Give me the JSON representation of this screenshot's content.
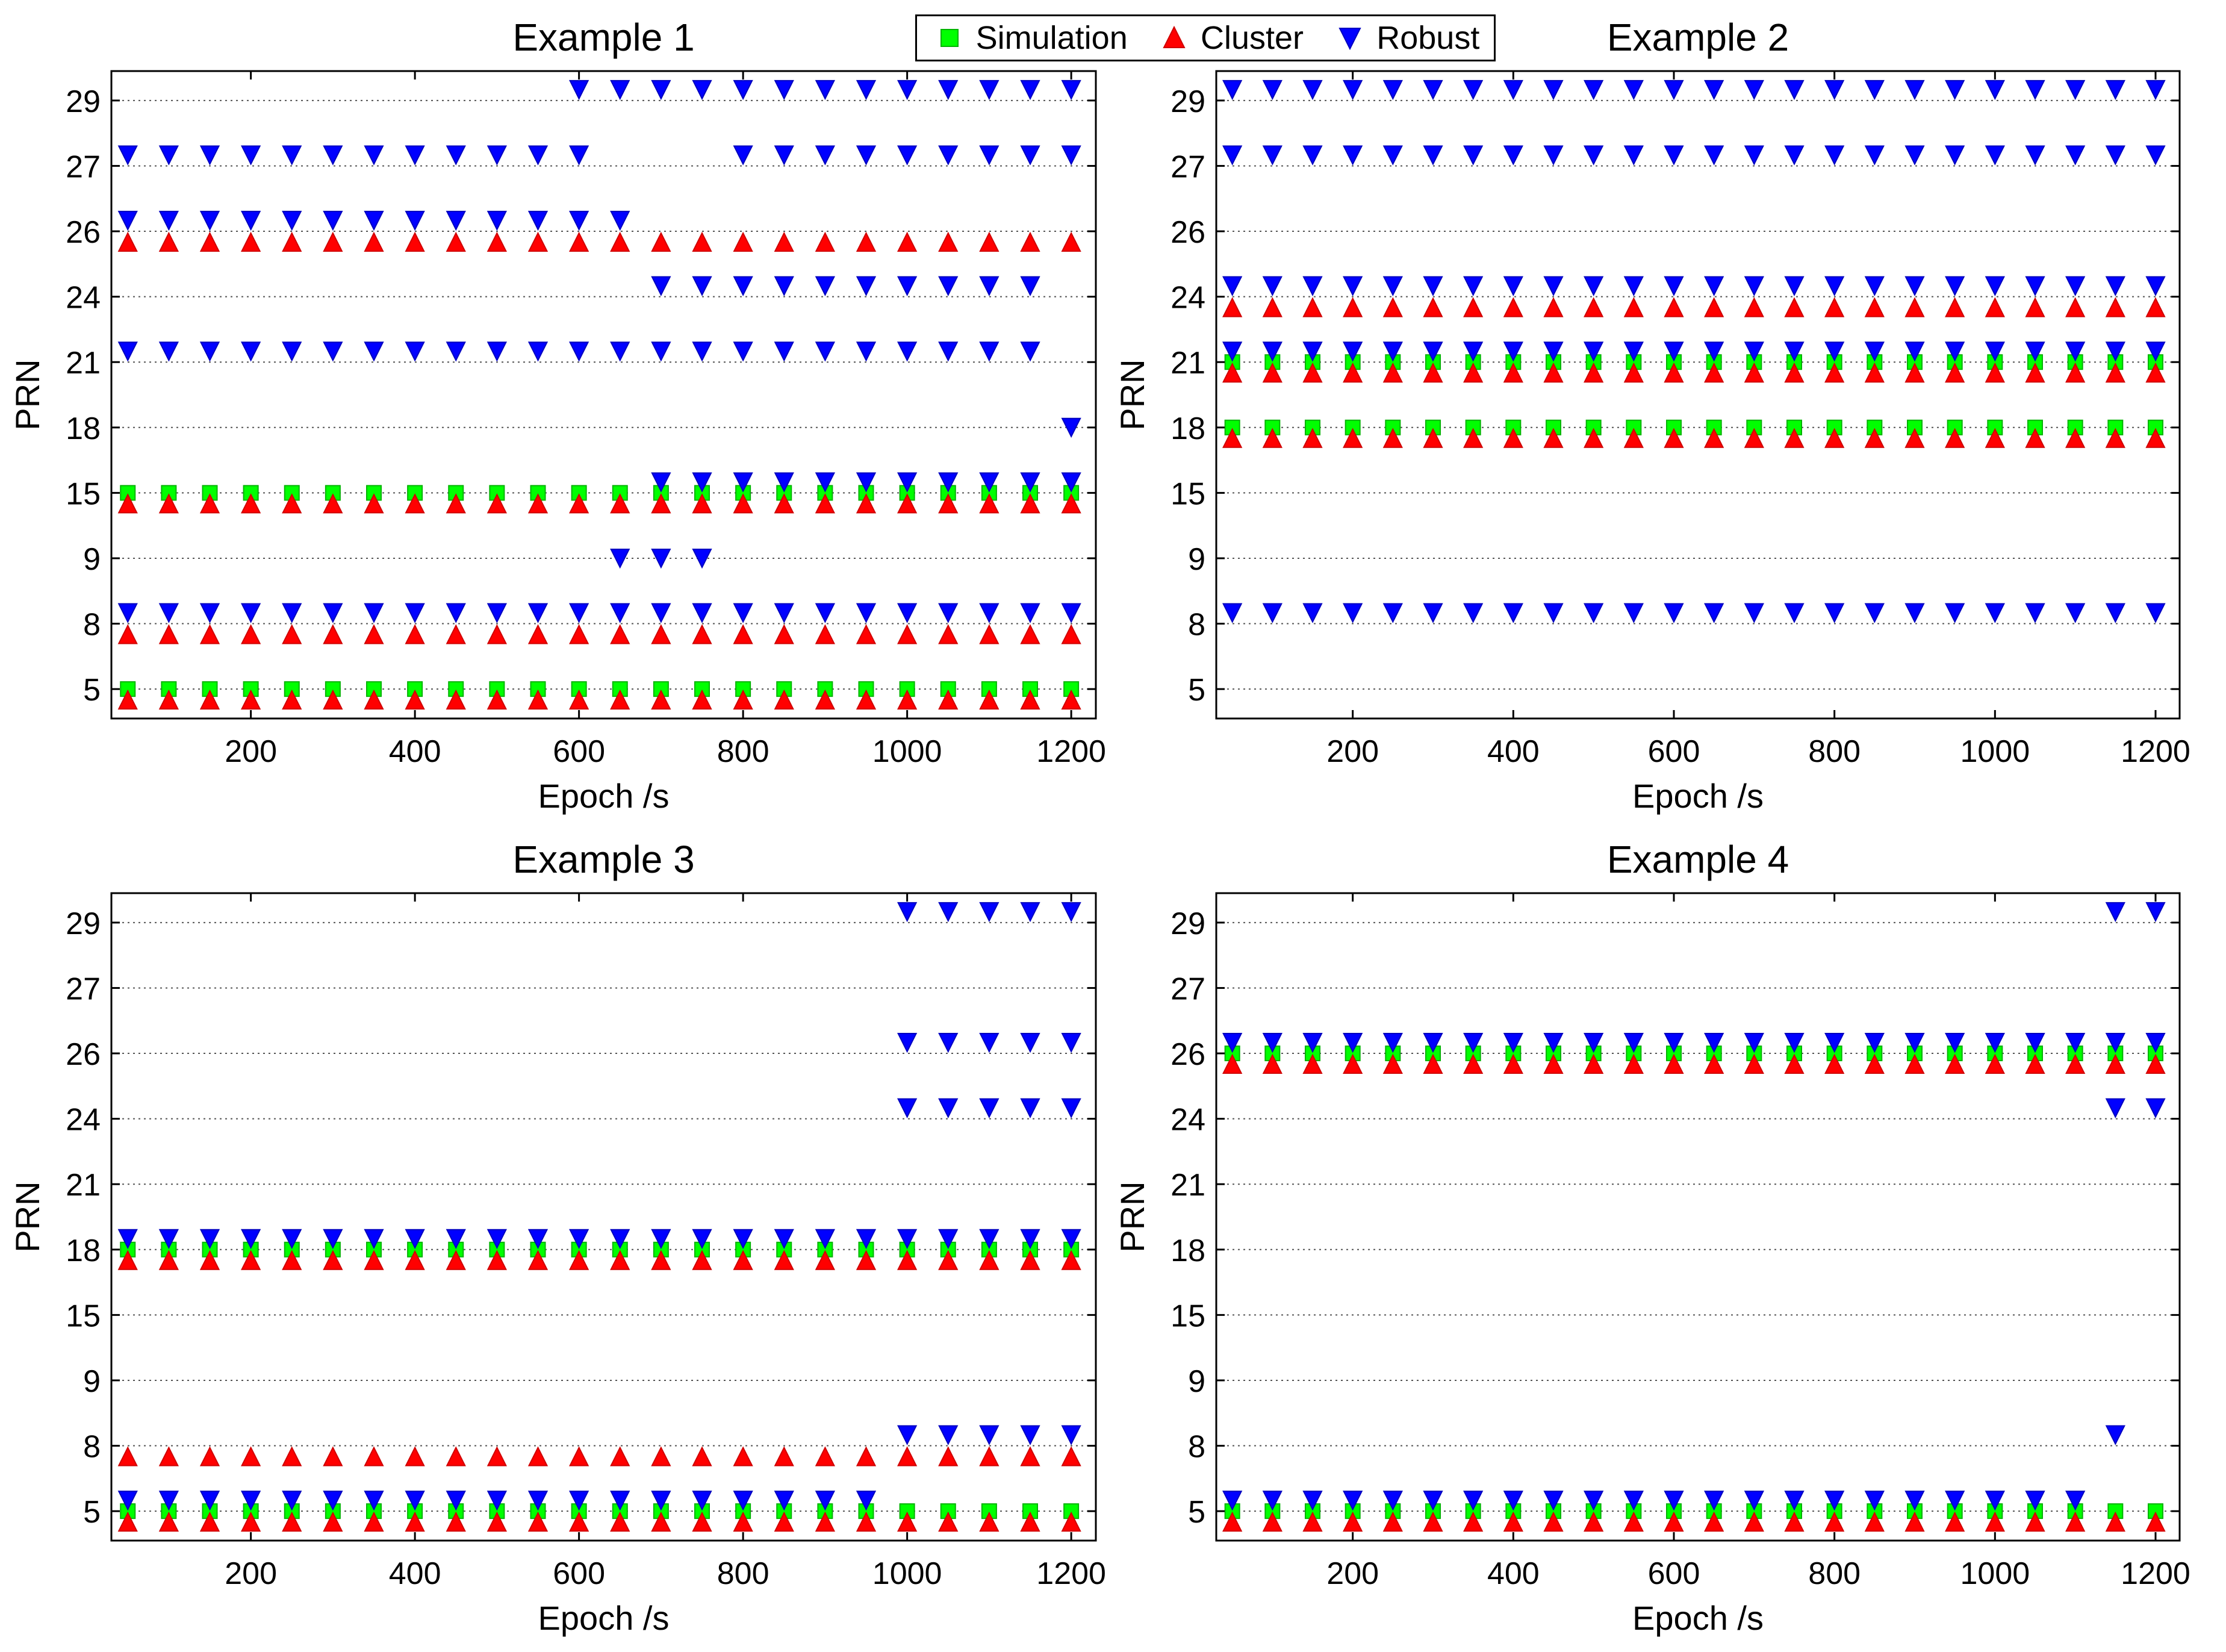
{
  "legend": {
    "entries": [
      {
        "label": "Simulation",
        "marker": "square",
        "color": "#00ff00",
        "edge": "#00b400"
      },
      {
        "label": "Cluster",
        "marker": "triangle-up",
        "color": "#ff0000",
        "edge": "#d00000"
      },
      {
        "label": "Robust",
        "marker": "triangle-down",
        "color": "#0000ff",
        "edge": "#0000c0"
      }
    ]
  },
  "chart_data": [
    {
      "type": "scatter",
      "title": "Example 1",
      "xlabel": "Epoch /s",
      "ylabel": "PRN",
      "xlim": [
        30,
        1230
      ],
      "x_ticks": [
        "200",
        "400",
        "600",
        "800",
        "1000",
        "1200"
      ],
      "y_categories": [
        "5",
        "8",
        "9",
        "15",
        "18",
        "21",
        "24",
        "26",
        "27",
        "29"
      ],
      "grid": "horizontal dotted",
      "series": [
        {
          "name": "Simulation",
          "points": [
            {
              "prn": "5",
              "from": 50,
              "to": 1200,
              "step": 50
            },
            {
              "prn": "15",
              "from": 50,
              "to": 1200,
              "step": 50
            }
          ]
        },
        {
          "name": "Cluster",
          "points": [
            {
              "prn": "5",
              "from": 50,
              "to": 1200,
              "step": 50
            },
            {
              "prn": "8",
              "from": 50,
              "to": 1200,
              "step": 50
            },
            {
              "prn": "15",
              "from": 50,
              "to": 1200,
              "step": 50
            },
            {
              "prn": "26",
              "from": 50,
              "to": 1200,
              "step": 50
            }
          ]
        },
        {
          "name": "Robust",
          "points": [
            {
              "prn": "8",
              "from": 50,
              "to": 1200,
              "step": 50
            },
            {
              "prn": "9",
              "from": 650,
              "to": 750,
              "step": 50
            },
            {
              "prn": "15",
              "from": 700,
              "to": 1200,
              "step": 50
            },
            {
              "prn": "18",
              "from": 1200,
              "to": 1200,
              "step": 50
            },
            {
              "prn": "21",
              "from": 50,
              "to": 1150,
              "step": 50
            },
            {
              "prn": "24",
              "from": 700,
              "to": 1150,
              "step": 50
            },
            {
              "prn": "26",
              "from": 50,
              "to": 650,
              "step": 50
            },
            {
              "prn": "27",
              "from": 50,
              "to": 600,
              "step": 50
            },
            {
              "prn": "27",
              "from": 800,
              "to": 1200,
              "step": 50
            },
            {
              "prn": "29",
              "from": 600,
              "to": 1200,
              "step": 50
            }
          ]
        }
      ]
    },
    {
      "type": "scatter",
      "title": "Example 2",
      "xlabel": "Epoch /s",
      "ylabel": "PRN",
      "xlim": [
        30,
        1230
      ],
      "x_ticks": [
        "200",
        "400",
        "600",
        "800",
        "1000",
        "1200"
      ],
      "y_categories": [
        "5",
        "8",
        "9",
        "15",
        "18",
        "21",
        "24",
        "26",
        "27",
        "29"
      ],
      "grid": "horizontal dotted",
      "series": [
        {
          "name": "Simulation",
          "points": [
            {
              "prn": "18",
              "from": 50,
              "to": 1200,
              "step": 50
            },
            {
              "prn": "21",
              "from": 50,
              "to": 1200,
              "step": 50
            }
          ]
        },
        {
          "name": "Cluster",
          "points": [
            {
              "prn": "18",
              "from": 50,
              "to": 1200,
              "step": 50
            },
            {
              "prn": "21",
              "from": 50,
              "to": 1200,
              "step": 50
            },
            {
              "prn": "24",
              "from": 50,
              "to": 1200,
              "step": 50
            }
          ]
        },
        {
          "name": "Robust",
          "points": [
            {
              "prn": "8",
              "from": 50,
              "to": 1200,
              "step": 50
            },
            {
              "prn": "21",
              "from": 50,
              "to": 1200,
              "step": 50
            },
            {
              "prn": "24",
              "from": 50,
              "to": 1200,
              "step": 50
            },
            {
              "prn": "27",
              "from": 50,
              "to": 1200,
              "step": 50
            },
            {
              "prn": "29",
              "from": 50,
              "to": 1200,
              "step": 50
            }
          ]
        }
      ]
    },
    {
      "type": "scatter",
      "title": "Example 3",
      "xlabel": "Epoch /s",
      "ylabel": "PRN",
      "xlim": [
        30,
        1230
      ],
      "x_ticks": [
        "200",
        "400",
        "600",
        "800",
        "1000",
        "1200"
      ],
      "y_categories": [
        "5",
        "8",
        "9",
        "15",
        "18",
        "21",
        "24",
        "26",
        "27",
        "29"
      ],
      "grid": "horizontal dotted",
      "series": [
        {
          "name": "Simulation",
          "points": [
            {
              "prn": "5",
              "from": 50,
              "to": 1200,
              "step": 50
            },
            {
              "prn": "18",
              "from": 50,
              "to": 1200,
              "step": 50
            }
          ]
        },
        {
          "name": "Cluster",
          "points": [
            {
              "prn": "5",
              "from": 50,
              "to": 1200,
              "step": 50
            },
            {
              "prn": "8",
              "from": 50,
              "to": 1200,
              "step": 50
            },
            {
              "prn": "18",
              "from": 50,
              "to": 1200,
              "step": 50
            }
          ]
        },
        {
          "name": "Robust",
          "points": [
            {
              "prn": "5",
              "from": 50,
              "to": 950,
              "step": 50
            },
            {
              "prn": "8",
              "from": 1000,
              "to": 1200,
              "step": 50
            },
            {
              "prn": "18",
              "from": 50,
              "to": 1200,
              "step": 50
            },
            {
              "prn": "24",
              "from": 1000,
              "to": 1200,
              "step": 50
            },
            {
              "prn": "26",
              "from": 1000,
              "to": 1200,
              "step": 50
            },
            {
              "prn": "29",
              "from": 1000,
              "to": 1200,
              "step": 50
            }
          ]
        }
      ]
    },
    {
      "type": "scatter",
      "title": "Example 4",
      "xlabel": "Epoch /s",
      "ylabel": "PRN",
      "xlim": [
        30,
        1230
      ],
      "x_ticks": [
        "200",
        "400",
        "600",
        "800",
        "1000",
        "1200"
      ],
      "y_categories": [
        "5",
        "8",
        "9",
        "15",
        "18",
        "21",
        "24",
        "26",
        "27",
        "29"
      ],
      "grid": "horizontal dotted",
      "series": [
        {
          "name": "Simulation",
          "points": [
            {
              "prn": "5",
              "from": 50,
              "to": 1200,
              "step": 50
            },
            {
              "prn": "26",
              "from": 50,
              "to": 1200,
              "step": 50
            }
          ]
        },
        {
          "name": "Cluster",
          "points": [
            {
              "prn": "5",
              "from": 50,
              "to": 1200,
              "step": 50
            },
            {
              "prn": "26",
              "from": 50,
              "to": 1200,
              "step": 50
            }
          ]
        },
        {
          "name": "Robust",
          "points": [
            {
              "prn": "5",
              "from": 50,
              "to": 1100,
              "step": 50
            },
            {
              "prn": "8",
              "from": 1150,
              "to": 1150,
              "step": 50
            },
            {
              "prn": "24",
              "from": 1150,
              "to": 1200,
              "step": 50
            },
            {
              "prn": "26",
              "from": 50,
              "to": 1200,
              "step": 50
            },
            {
              "prn": "29",
              "from": 1150,
              "to": 1200,
              "step": 50
            }
          ]
        }
      ]
    }
  ]
}
